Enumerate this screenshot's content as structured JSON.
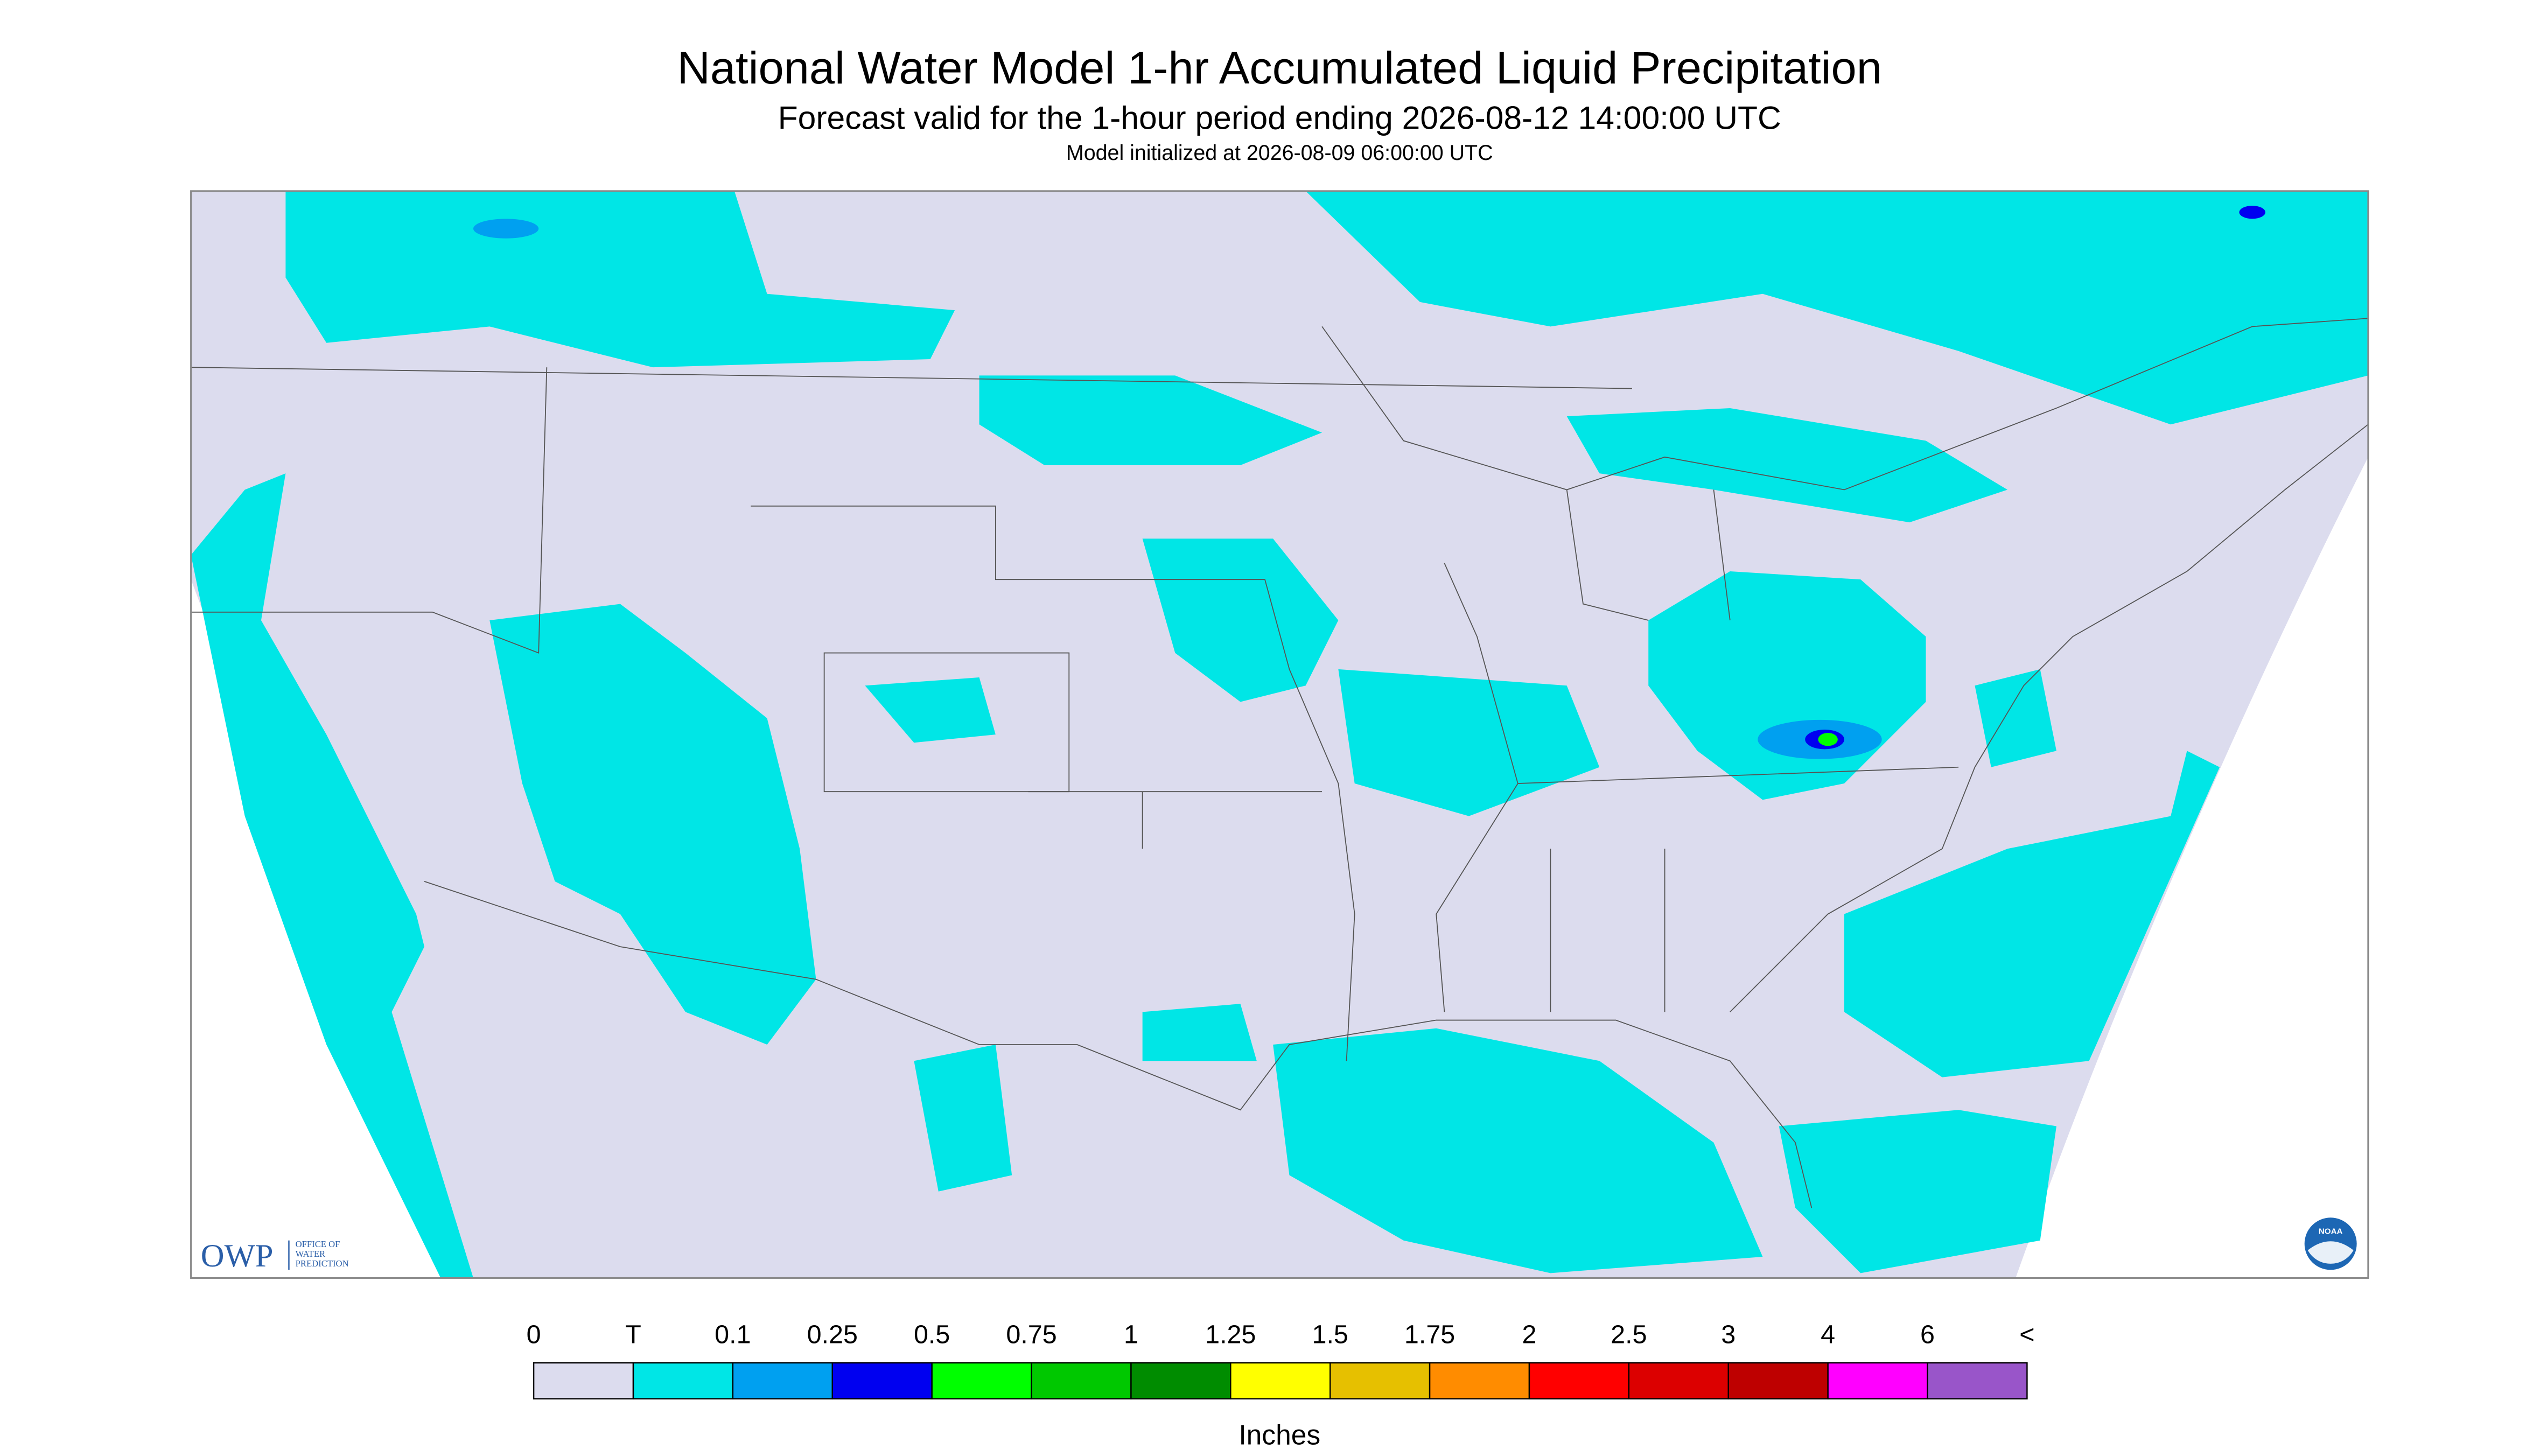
{
  "header": {
    "title": "National Water Model 1-hr Accumulated Liquid Precipitation",
    "subtitle": "Forecast valid for the 1-hour period ending 2026-08-12 14:00:00 UTC",
    "initialized": "Model initialized at 2026-08-09 06:00:00 UTC"
  },
  "logos": {
    "owp": "OWP",
    "owp_lines": [
      "OFFICE OF",
      "WATER",
      "PREDICTION"
    ],
    "noaa": "NOAA"
  },
  "legend": {
    "labels": [
      "0",
      "T",
      "0.1",
      "0.25",
      "0.5",
      "0.75",
      "1",
      "1.25",
      "1.5",
      "1.75",
      "2",
      "2.5",
      "3",
      "4",
      "6",
      "<"
    ],
    "colors": [
      "#dcdcee",
      "#00e6e6",
      "#00a0f0",
      "#0000f0",
      "#00ff00",
      "#00c800",
      "#008c00",
      "#ffff00",
      "#e6c000",
      "#ff8c00",
      "#ff0000",
      "#dc0000",
      "#be0000",
      "#ff00ff",
      "#9955c9"
    ],
    "unit": "Inches"
  }
}
